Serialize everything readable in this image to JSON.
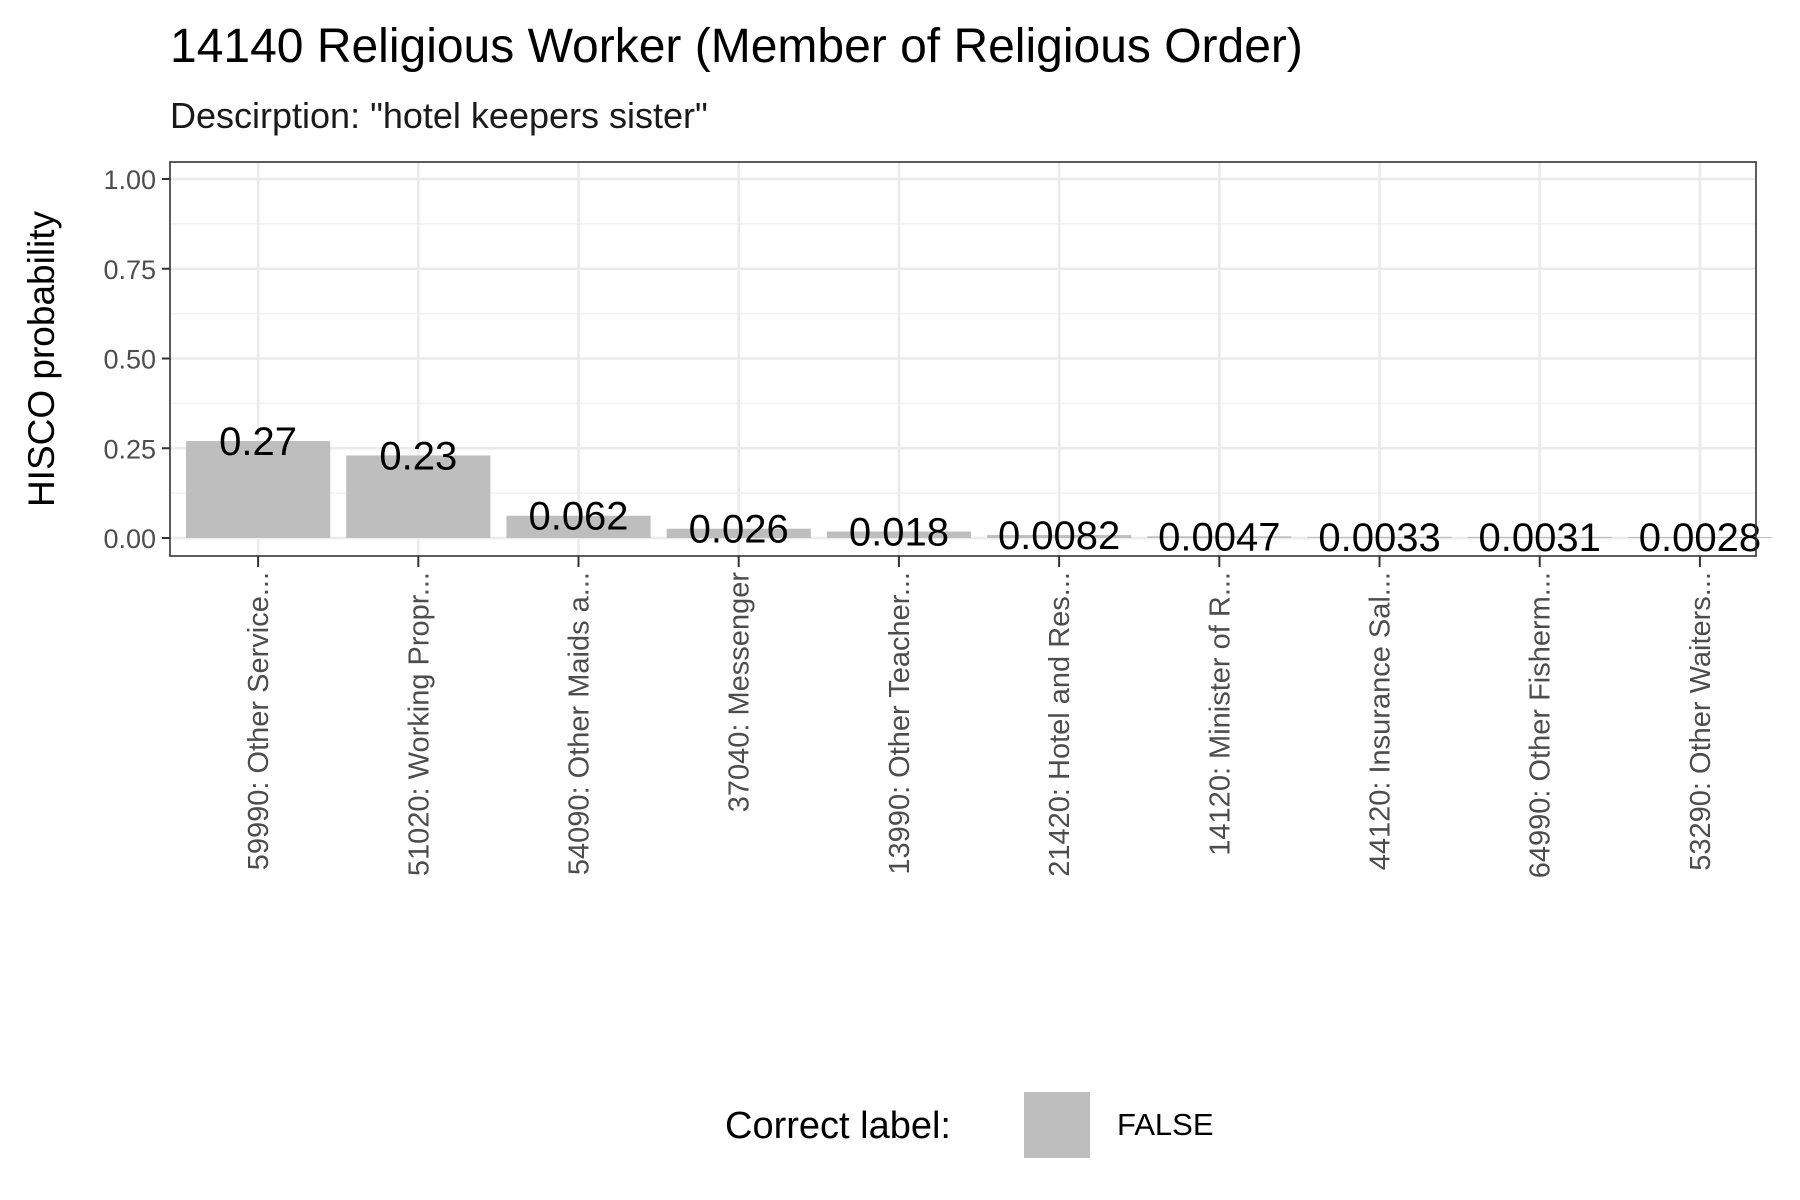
{
  "chart_data": {
    "type": "bar",
    "title": "14140 Religious Worker (Member of Religious Order)",
    "subtitle": "Descirption: \"hotel keepers sister\"",
    "xlabel": "",
    "ylabel": "HISCO probability",
    "ylim": [
      0,
      1
    ],
    "yticks": [
      "0.00",
      "0.25",
      "0.50",
      "0.75",
      "1.00"
    ],
    "categories": [
      "59990: Other Service...",
      "51020: Working Propr...",
      "54090: Other Maids a...",
      "37040: Messenger",
      "13990: Other Teacher...",
      "21420: Hotel and Res...",
      "14120: Minister of R...",
      "44120: Insurance Sal...",
      "64990: Other Fisherm...",
      "53290: Other Waiters..."
    ],
    "values": [
      0.27,
      0.23,
      0.062,
      0.026,
      0.018,
      0.0082,
      0.0047,
      0.0033,
      0.0031,
      0.0028
    ],
    "value_labels": [
      "0.27",
      "0.23",
      "0.062",
      "0.026",
      "0.018",
      "0.0082",
      "0.0047",
      "0.0033",
      "0.0031",
      "0.0028"
    ],
    "grid": true,
    "legend": {
      "title": "Correct label:",
      "placement": "bottom",
      "entries": [
        {
          "label": "FALSE",
          "color": "#bebebe"
        }
      ]
    },
    "bar_color": "#bebebe"
  }
}
